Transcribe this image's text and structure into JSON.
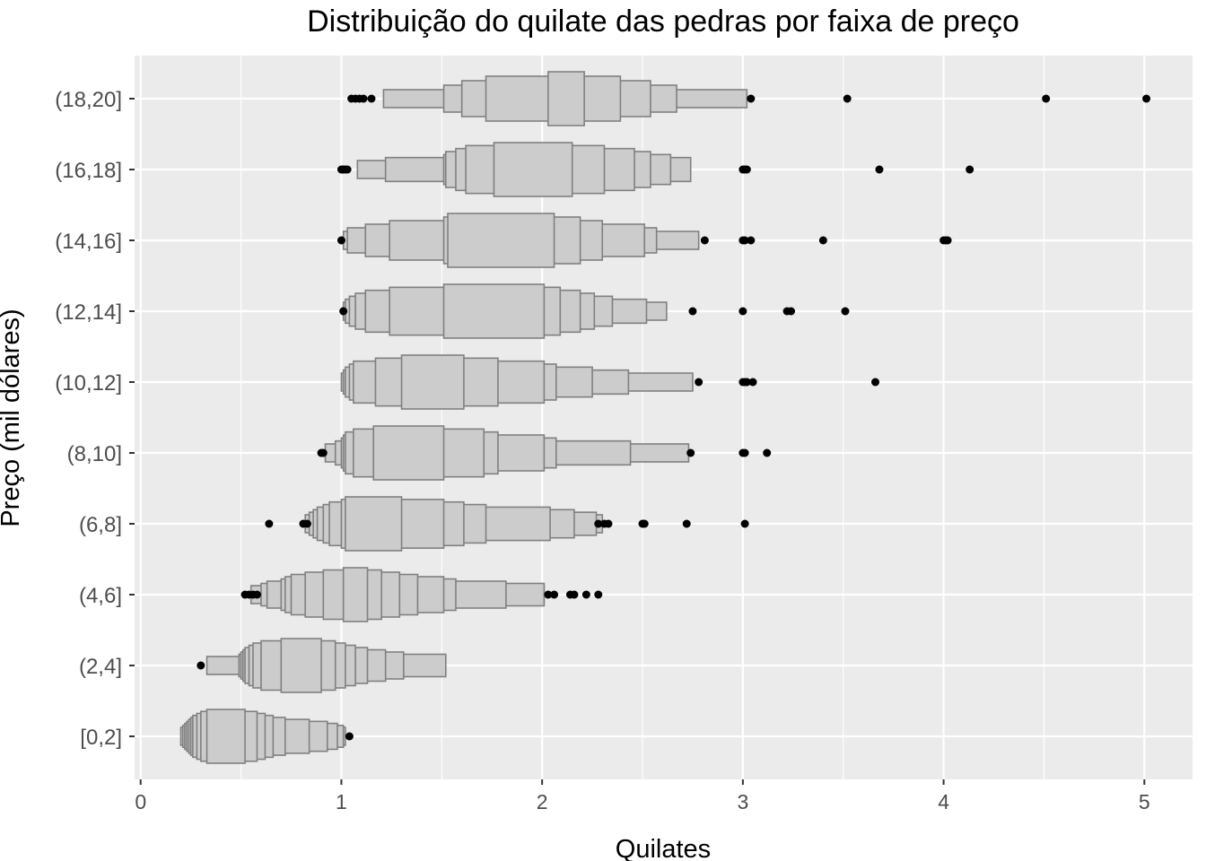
{
  "chart_data": {
    "type": "letter-value boxplot",
    "title": "Distribuição do quilate das pedras por faixa de preço",
    "xlabel": "Quilates",
    "ylabel": "Preço (mil dólares)",
    "xlim": [
      -0.03,
      5.24
    ],
    "x_ticks": [
      0,
      1,
      2,
      3,
      4,
      5
    ],
    "grid": true,
    "colors": {
      "panel": "#ebebeb",
      "grid": "#ffffff",
      "box_fill": "#cccccc",
      "box_stroke": "#808080",
      "outlier": "#000000"
    },
    "groups": [
      {
        "label": "[0,2]",
        "levels": [
          [
            0.33,
            0.52
          ],
          [
            0.3,
            0.58
          ],
          [
            0.28,
            0.62
          ],
          [
            0.26,
            0.66
          ],
          [
            0.25,
            0.72
          ],
          [
            0.24,
            0.84
          ],
          [
            0.23,
            0.93
          ],
          [
            0.22,
            0.98
          ],
          [
            0.21,
            1.01
          ],
          [
            0.2,
            1.02
          ]
        ],
        "outliers": [
          1.04
        ]
      },
      {
        "label": "(2,4]",
        "levels": [
          [
            0.7,
            0.9
          ],
          [
            0.6,
            0.97
          ],
          [
            0.56,
            1.02
          ],
          [
            0.54,
            1.07
          ],
          [
            0.52,
            1.13
          ],
          [
            0.51,
            1.22
          ],
          [
            0.5,
            1.31
          ],
          [
            0.49,
            1.52
          ],
          [
            0.33,
            1.52
          ]
        ],
        "outliers": [
          0.3
        ]
      },
      {
        "label": "(4,6]",
        "levels": [
          [
            1.01,
            1.13
          ],
          [
            0.91,
            1.2
          ],
          [
            0.82,
            1.29
          ],
          [
            0.75,
            1.38
          ],
          [
            0.72,
            1.51
          ],
          [
            0.7,
            1.57
          ],
          [
            0.63,
            1.82
          ],
          [
            0.6,
            2.01
          ],
          [
            0.55,
            2.01
          ]
        ],
        "outliers": [
          0.52,
          0.54,
          0.56,
          0.58,
          2.03,
          2.06,
          2.14,
          2.16,
          2.22,
          2.28
        ]
      },
      {
        "label": "(6,8]",
        "levels": [
          [
            1.02,
            1.3
          ],
          [
            1.0,
            1.51
          ],
          [
            0.94,
            1.61
          ],
          [
            0.91,
            1.72
          ],
          [
            0.88,
            2.04
          ],
          [
            0.86,
            2.16
          ],
          [
            0.84,
            2.27
          ],
          [
            0.82,
            2.3
          ]
        ],
        "outliers": [
          0.64,
          0.81,
          0.83,
          2.28,
          2.31,
          2.33,
          2.5,
          2.51,
          2.72,
          3.01
        ]
      },
      {
        "label": "(8,10]",
        "levels": [
          [
            1.16,
            1.51
          ],
          [
            1.06,
            1.71
          ],
          [
            1.02,
            1.78
          ],
          [
            1.01,
            2.01
          ],
          [
            1.0,
            2.07
          ],
          [
            0.97,
            2.44
          ],
          [
            0.92,
            2.73
          ]
        ],
        "outliers": [
          0.9,
          0.91,
          2.74,
          3.0,
          3.01,
          3.12
        ]
      },
      {
        "label": "(10,12]",
        "levels": [
          [
            1.3,
            1.61
          ],
          [
            1.17,
            1.78
          ],
          [
            1.06,
            2.01
          ],
          [
            1.04,
            2.07
          ],
          [
            1.02,
            2.25
          ],
          [
            1.01,
            2.43
          ],
          [
            1.0,
            2.75
          ]
        ],
        "outliers": [
          2.78,
          3.0,
          3.01,
          3.02,
          3.05,
          3.66
        ]
      },
      {
        "label": "(12,14]",
        "levels": [
          [
            1.51,
            2.01
          ],
          [
            1.24,
            2.09
          ],
          [
            1.12,
            2.19
          ],
          [
            1.07,
            2.26
          ],
          [
            1.04,
            2.35
          ],
          [
            1.02,
            2.52
          ],
          [
            1.01,
            2.62
          ]
        ],
        "outliers": [
          1.01,
          2.75,
          3.0,
          3.22,
          3.24,
          3.51
        ]
      },
      {
        "label": "(14,16]",
        "levels": [
          [
            1.53,
            2.06
          ],
          [
            1.51,
            2.19
          ],
          [
            1.24,
            2.3
          ],
          [
            1.12,
            2.51
          ],
          [
            1.03,
            2.57
          ],
          [
            1.01,
            2.78
          ]
        ],
        "outliers": [
          1.0,
          2.81,
          3.0,
          3.01,
          3.04,
          3.4,
          4.0,
          4.01,
          4.02
        ]
      },
      {
        "label": "(16,18]",
        "levels": [
          [
            1.76,
            2.15
          ],
          [
            1.62,
            2.31
          ],
          [
            1.57,
            2.46
          ],
          [
            1.52,
            2.54
          ],
          [
            1.51,
            2.64
          ],
          [
            1.22,
            2.74
          ],
          [
            1.08,
            2.74
          ]
        ],
        "outliers": [
          1.0,
          1.01,
          1.02,
          1.03,
          3.0,
          3.01,
          3.02,
          3.68,
          4.13
        ]
      },
      {
        "label": "(18,20]",
        "levels": [
          [
            2.03,
            2.21
          ],
          [
            1.72,
            2.39
          ],
          [
            1.6,
            2.54
          ],
          [
            1.51,
            2.67
          ],
          [
            1.21,
            3.02
          ]
        ],
        "outliers": [
          1.05,
          1.07,
          1.09,
          1.11,
          1.15,
          3.04,
          3.52,
          4.51,
          5.01
        ]
      }
    ]
  }
}
